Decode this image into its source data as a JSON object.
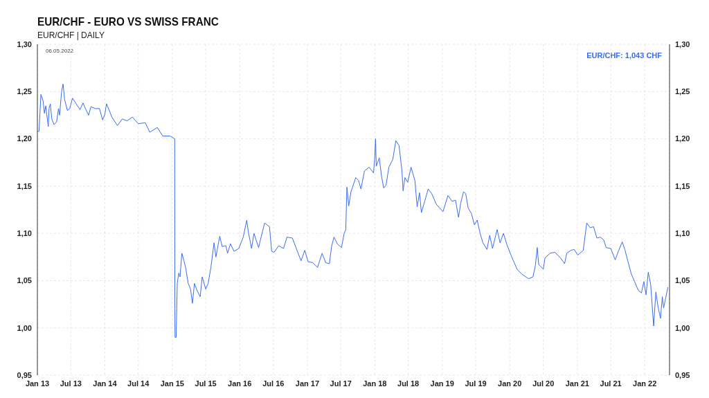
{
  "chart_data": {
    "type": "line",
    "title": "EUR/CHF - EURO VS SWISS FRANC",
    "subtitle": "EUR/CHF | DAILY",
    "annotations": [
      "06.05.2022",
      "EUR/CHF: 1,043 CHF"
    ],
    "x": [
      "2013-01-02",
      "2013-01-10",
      "2013-01-20",
      "2013-02-01",
      "2013-02-08",
      "2013-02-15",
      "2013-03-01",
      "2013-03-05",
      "2013-03-12",
      "2013-03-20",
      "2013-04-01",
      "2013-04-15",
      "2013-04-25",
      "2013-05-01",
      "2013-05-12",
      "2013-05-20",
      "2013-05-28",
      "2013-06-12",
      "2013-06-25",
      "2013-07-10",
      "2013-07-30",
      "2013-08-20",
      "2013-09-05",
      "2013-09-18",
      "2013-10-05",
      "2013-10-18",
      "2013-11-10",
      "2013-12-03",
      "2013-12-20",
      "2014-01-01",
      "2014-01-10",
      "2014-01-25",
      "2014-02-08",
      "2014-03-10",
      "2014-04-05",
      "2014-05-01",
      "2014-05-30",
      "2014-07-01",
      "2014-08-08",
      "2014-09-01",
      "2014-10-12",
      "2014-11-10",
      "2014-12-20",
      "2015-01-14",
      "2015-01-15",
      "2015-01-16",
      "2015-01-22",
      "2015-01-28",
      "2015-02-05",
      "2015-02-12",
      "2015-02-22",
      "2015-03-05",
      "2015-03-15",
      "2015-03-28",
      "2015-04-10",
      "2015-04-20",
      "2015-05-01",
      "2015-05-14",
      "2015-06-01",
      "2015-06-12",
      "2015-07-01",
      "2015-07-14",
      "2015-07-29",
      "2015-08-15",
      "2015-08-25",
      "2015-09-15",
      "2015-09-28",
      "2015-10-18",
      "2015-10-27",
      "2015-11-12",
      "2015-12-01",
      "2015-12-27",
      "2016-01-20",
      "2016-02-08",
      "2016-02-17",
      "2016-03-05",
      "2016-03-18",
      "2016-04-12",
      "2016-05-02",
      "2016-05-15",
      "2016-06-10",
      "2016-06-22",
      "2016-07-05",
      "2016-07-30",
      "2016-08-25",
      "2016-09-13",
      "2016-10-12",
      "2016-11-08",
      "2016-11-28",
      "2016-12-18",
      "2017-01-05",
      "2017-01-30",
      "2017-02-25",
      "2017-03-22",
      "2017-04-10",
      "2017-04-30",
      "2017-05-12",
      "2017-05-25",
      "2017-06-12",
      "2017-07-05",
      "2017-07-19",
      "2017-07-28",
      "2017-08-03",
      "2017-08-13",
      "2017-08-25",
      "2017-09-20",
      "2017-10-05",
      "2017-10-18",
      "2017-11-06",
      "2017-12-01",
      "2017-12-25",
      "2017-12-31",
      "2018-01-05",
      "2018-01-09",
      "2018-01-25",
      "2018-02-06",
      "2018-02-18",
      "2018-03-03",
      "2018-03-18",
      "2018-04-08",
      "2018-04-25",
      "2018-05-12",
      "2018-05-28",
      "2018-06-03",
      "2018-06-13",
      "2018-06-28",
      "2018-07-16",
      "2018-08-06",
      "2018-08-18",
      "2018-08-31",
      "2018-09-10",
      "2018-09-28",
      "2018-10-17",
      "2018-11-05",
      "2018-11-29",
      "2019-01-05",
      "2019-02-01",
      "2019-02-23",
      "2019-03-14",
      "2019-03-30",
      "2019-04-11",
      "2019-04-26",
      "2019-05-08",
      "2019-05-21",
      "2019-06-08",
      "2019-06-24",
      "2019-07-09",
      "2019-07-25",
      "2019-08-09",
      "2019-08-31",
      "2019-09-15",
      "2019-09-30",
      "2019-10-25",
      "2019-11-10",
      "2019-11-28",
      "2019-12-17",
      "2020-01-10",
      "2020-02-10",
      "2020-03-06",
      "2020-04-12",
      "2020-05-06",
      "2020-05-19",
      "2020-05-29",
      "2020-06-06",
      "2020-07-01",
      "2020-07-10",
      "2020-08-07",
      "2020-09-01",
      "2020-10-02",
      "2020-10-24",
      "2020-11-05",
      "2020-11-27",
      "2020-12-15",
      "2021-01-03",
      "2021-02-02",
      "2021-02-21",
      "2021-03-11",
      "2021-03-30",
      "2021-04-17",
      "2021-05-06",
      "2021-05-24",
      "2021-06-06",
      "2021-07-01",
      "2021-07-25",
      "2021-08-13",
      "2021-09-01",
      "2021-09-15",
      "2021-10-01",
      "2021-10-20",
      "2021-11-07",
      "2021-11-26",
      "2021-12-14",
      "2021-12-27",
      "2022-01-08",
      "2022-01-20",
      "2022-02-02",
      "2022-02-18",
      "2022-03-02",
      "2022-03-14",
      "2022-03-27",
      "2022-04-06",
      "2022-04-13",
      "2022-05-06"
    ],
    "series": [
      {
        "color": "#3a6cf4",
        "axis": "y",
        "values": [
          1.208,
          1.208,
          1.247,
          1.24,
          1.227,
          1.235,
          1.213,
          1.232,
          1.237,
          1.221,
          1.215,
          1.218,
          1.232,
          1.225,
          1.25,
          1.258,
          1.242,
          1.23,
          1.232,
          1.243,
          1.237,
          1.231,
          1.238,
          1.232,
          1.225,
          1.234,
          1.232,
          1.232,
          1.22,
          1.226,
          1.237,
          1.23,
          1.223,
          1.214,
          1.221,
          1.219,
          1.223,
          1.216,
          1.217,
          1.207,
          1.212,
          1.203,
          1.203,
          1.2,
          1.02,
          0.99,
          0.99,
          1.047,
          1.058,
          1.054,
          1.079,
          1.071,
          1.063,
          1.047,
          1.041,
          1.026,
          1.047,
          1.04,
          1.033,
          1.054,
          1.041,
          1.047,
          1.064,
          1.09,
          1.075,
          1.097,
          1.086,
          1.087,
          1.079,
          1.089,
          1.081,
          1.084,
          1.096,
          1.114,
          1.101,
          1.084,
          1.1,
          1.085,
          1.101,
          1.111,
          1.107,
          1.081,
          1.08,
          1.087,
          1.084,
          1.096,
          1.095,
          1.081,
          1.071,
          1.082,
          1.07,
          1.069,
          1.064,
          1.079,
          1.069,
          1.068,
          1.086,
          1.096,
          1.089,
          1.085,
          1.1,
          1.104,
          1.149,
          1.129,
          1.144,
          1.159,
          1.156,
          1.147,
          1.166,
          1.17,
          1.164,
          1.178,
          1.2,
          1.171,
          1.18,
          1.161,
          1.148,
          1.151,
          1.17,
          1.178,
          1.198,
          1.193,
          1.166,
          1.145,
          1.159,
          1.154,
          1.17,
          1.156,
          1.128,
          1.143,
          1.122,
          1.134,
          1.147,
          1.142,
          1.131,
          1.123,
          1.14,
          1.134,
          1.135,
          1.117,
          1.132,
          1.144,
          1.142,
          1.127,
          1.121,
          1.109,
          1.114,
          1.1,
          1.09,
          1.083,
          1.098,
          1.084,
          1.104,
          1.09,
          1.1,
          1.088,
          1.076,
          1.062,
          1.057,
          1.052,
          1.054,
          1.066,
          1.085,
          1.067,
          1.062,
          1.074,
          1.079,
          1.08,
          1.074,
          1.068,
          1.079,
          1.082,
          1.083,
          1.077,
          1.082,
          1.111,
          1.106,
          1.107,
          1.095,
          1.096,
          1.093,
          1.085,
          1.084,
          1.072,
          1.082,
          1.091,
          1.083,
          1.071,
          1.057,
          1.049,
          1.04,
          1.037,
          1.049,
          1.035,
          1.059,
          1.046,
          1.002,
          1.038,
          1.022,
          1.01,
          1.033,
          1.021,
          1.043
        ]
      }
    ],
    "xlim": [
      "2013-01-01",
      "2022-05-15"
    ],
    "xticks": [
      {
        "value": "2013-01-01",
        "label": "Jan 13"
      },
      {
        "value": "2013-07-01",
        "label": "Jul 13"
      },
      {
        "value": "2014-01-01",
        "label": "Jan 14"
      },
      {
        "value": "2014-07-01",
        "label": "Jul 14"
      },
      {
        "value": "2015-01-01",
        "label": "Jan 15"
      },
      {
        "value": "2015-07-01",
        "label": "Jul 15"
      },
      {
        "value": "2016-01-01",
        "label": "Jan 16"
      },
      {
        "value": "2016-07-01",
        "label": "Jul 16"
      },
      {
        "value": "2017-01-01",
        "label": "Jan 17"
      },
      {
        "value": "2017-07-01",
        "label": "Jul 17"
      },
      {
        "value": "2018-01-01",
        "label": "Jan 18"
      },
      {
        "value": "2018-07-01",
        "label": "Jul 18"
      },
      {
        "value": "2019-01-01",
        "label": "Jan 19"
      },
      {
        "value": "2019-07-01",
        "label": "Jul 19"
      },
      {
        "value": "2020-01-01",
        "label": "Jan 20"
      },
      {
        "value": "2020-07-01",
        "label": "Jul 20"
      },
      {
        "value": "2021-01-01",
        "label": "Jan 21"
      },
      {
        "value": "2021-07-01",
        "label": "Jul 21"
      },
      {
        "value": "2022-01-01",
        "label": "Jan 22"
      }
    ],
    "ylim": [
      0.95,
      1.3
    ],
    "yticks": [
      {
        "value": 0.95,
        "label": "0,95"
      },
      {
        "value": 1.0,
        "label": "1,00"
      },
      {
        "value": 1.05,
        "label": "1,05"
      },
      {
        "value": 1.1,
        "label": "1,10"
      },
      {
        "value": 1.15,
        "label": "1,15"
      },
      {
        "value": 1.2,
        "label": "1,20"
      },
      {
        "value": 1.25,
        "label": "1,25"
      },
      {
        "value": 1.3,
        "label": "1,30"
      }
    ],
    "y2lim": [
      0.95,
      1.3
    ],
    "y2ticks": [
      {
        "value": 0.95,
        "label": "0,95"
      },
      {
        "value": 1.0,
        "label": "1,00"
      },
      {
        "value": 1.05,
        "label": "1,05"
      },
      {
        "value": 1.1,
        "label": "1,10"
      },
      {
        "value": 1.15,
        "label": "1,15"
      },
      {
        "value": 1.2,
        "label": "1,20"
      },
      {
        "value": 1.25,
        "label": "1,25"
      },
      {
        "value": 1.3,
        "label": "1,30"
      }
    ],
    "grid": true,
    "marker": "none",
    "line_style": "solid"
  }
}
